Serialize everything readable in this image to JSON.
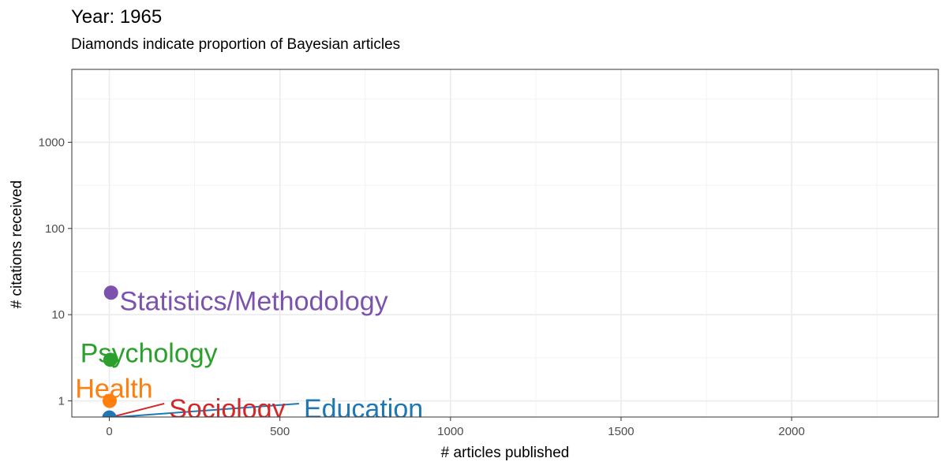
{
  "title": "Year: 1965",
  "subtitle": "Diamonds indicate proportion of Bayesian articles",
  "chart_data": {
    "type": "scatter",
    "xlabel": "# articles published",
    "ylabel": "# citations received",
    "xlim": [
      -110,
      2430
    ],
    "ylim": [
      0.65,
      7000
    ],
    "y_scale": "log",
    "x_ticks": [
      0,
      500,
      1000,
      1500,
      2000
    ],
    "x_tick_labels": [
      "0",
      "500",
      "1000",
      "1500",
      "2000"
    ],
    "y_ticks": [
      1,
      10,
      100,
      1000
    ],
    "y_tick_labels": [
      "1",
      "10",
      "100",
      "1000"
    ],
    "grid": true,
    "series": [
      {
        "name": "Statistics/Methodology",
        "color": "#7B52AE",
        "x": 5,
        "y": 18,
        "label_x": 30,
        "label_y": 14.5
      },
      {
        "name": "Psychology",
        "color": "#2CA02C",
        "x": 3,
        "y": 3,
        "label_x": -85,
        "label_y": 3.6
      },
      {
        "name": "Health",
        "color": "#FF7F0E",
        "x": 1,
        "y": 1,
        "label_x": -100,
        "label_y": 1.4
      },
      {
        "name": "Sociology",
        "color": "#D62728",
        "x": 0,
        "y": 0.64,
        "label_x": 175,
        "label_y": 0.82
      },
      {
        "name": "Education",
        "color": "#1F77B4",
        "x": 0,
        "y": 0.64,
        "label_x": 570,
        "label_y": 0.82
      }
    ]
  }
}
